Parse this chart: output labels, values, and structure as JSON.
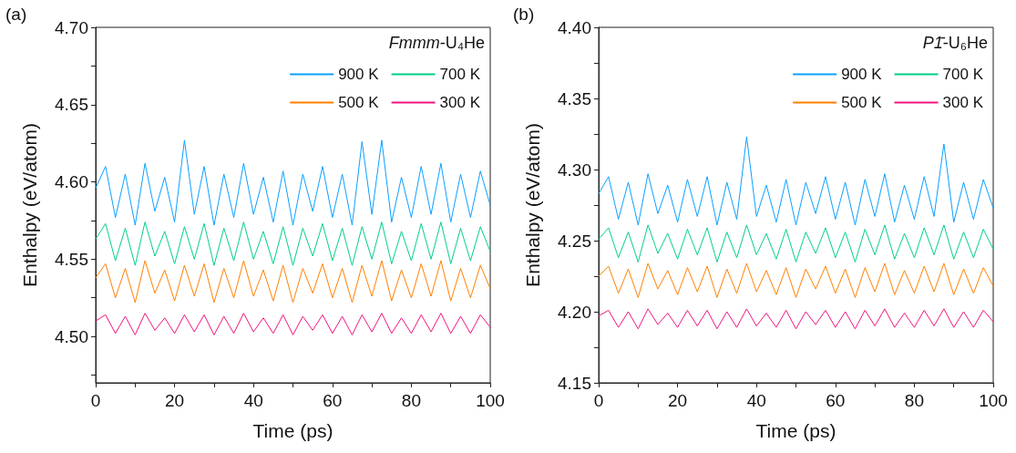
{
  "chart_data": [
    {
      "type": "line",
      "annotations": [
        "(a)"
      ],
      "legend_title": "Fmmm-U₄He",
      "xlabel": "Time (ps)",
      "ylabel": "Enthalpy (eV/atom)",
      "xlim": [
        0,
        100
      ],
      "ylim": [
        4.47,
        4.7
      ],
      "xticks": [
        0,
        {
          "value": 10,
          "label": null
        },
        20,
        {
          "value": 30,
          "label": null
        },
        40,
        {
          "value": 50,
          "label": null
        },
        60,
        {
          "value": 70,
          "label": null
        },
        80,
        {
          "value": 90,
          "label": null
        },
        100
      ],
      "yticks": [
        {
          "value": 4.475,
          "label": null
        },
        {
          "value": 4.5,
          "label": "4.50"
        },
        {
          "value": 4.525,
          "label": null
        },
        {
          "value": 4.55,
          "label": "4.55"
        },
        {
          "value": 4.575,
          "label": null
        },
        {
          "value": 4.6,
          "label": "4.60"
        },
        {
          "value": 4.625,
          "label": null
        },
        {
          "value": 4.65,
          "label": "4.65"
        },
        {
          "value": 4.675,
          "label": null
        },
        {
          "value": 4.7,
          "label": "4.70"
        }
      ],
      "grid": false,
      "legend": "top right",
      "marker": "none",
      "line_style": "solid",
      "x": [
        0,
        2.5,
        5,
        7.5,
        10,
        12.5,
        15,
        17.5,
        20,
        22.5,
        25,
        27.5,
        30,
        32.5,
        35,
        37.5,
        40,
        42.5,
        45,
        47.5,
        50,
        52.5,
        55,
        57.5,
        60,
        62.5,
        65,
        67.5,
        70,
        72.5,
        75,
        77.5,
        80,
        82.5,
        85,
        87.5,
        90,
        92.5,
        95,
        97.5,
        100
      ],
      "series": [
        {
          "name": "900 K",
          "color": "#0aa0ff",
          "values": [
            4.596,
            4.61,
            4.577,
            4.605,
            4.572,
            4.612,
            4.581,
            4.603,
            4.574,
            4.627,
            4.579,
            4.61,
            4.572,
            4.605,
            4.577,
            4.612,
            4.579,
            4.603,
            4.574,
            4.607,
            4.572,
            4.605,
            4.581,
            4.61,
            4.577,
            4.605,
            4.572,
            4.626,
            4.579,
            4.627,
            4.574,
            4.603,
            4.577,
            4.61,
            4.579,
            4.612,
            4.574,
            4.605,
            4.577,
            4.607,
            4.585
          ]
        },
        {
          "name": "700 K",
          "color": "#00d084",
          "values": [
            4.563,
            4.573,
            4.549,
            4.57,
            4.546,
            4.574,
            4.552,
            4.568,
            4.547,
            4.571,
            4.55,
            4.573,
            4.546,
            4.57,
            4.549,
            4.574,
            4.55,
            4.568,
            4.547,
            4.571,
            4.546,
            4.57,
            4.552,
            4.573,
            4.549,
            4.57,
            4.546,
            4.571,
            4.55,
            4.574,
            4.547,
            4.568,
            4.549,
            4.573,
            4.55,
            4.574,
            4.547,
            4.57,
            4.549,
            4.571,
            4.555
          ]
        },
        {
          "name": "500 K",
          "color": "#ff8000",
          "values": [
            4.538,
            4.547,
            4.525,
            4.544,
            4.522,
            4.549,
            4.528,
            4.543,
            4.523,
            4.546,
            4.526,
            4.547,
            4.522,
            4.544,
            4.525,
            4.549,
            4.526,
            4.543,
            4.523,
            4.546,
            4.522,
            4.544,
            4.528,
            4.547,
            4.525,
            4.544,
            4.522,
            4.546,
            4.526,
            4.549,
            4.523,
            4.543,
            4.525,
            4.547,
            4.526,
            4.549,
            4.523,
            4.544,
            4.525,
            4.546,
            4.531
          ]
        },
        {
          "name": "300 K",
          "color": "#f0147f",
          "values": [
            4.51,
            4.514,
            4.502,
            4.513,
            4.501,
            4.515,
            4.504,
            4.512,
            4.502,
            4.514,
            4.503,
            4.514,
            4.501,
            4.513,
            4.502,
            4.515,
            4.503,
            4.512,
            4.502,
            4.514,
            4.501,
            4.513,
            4.504,
            4.514,
            4.502,
            4.513,
            4.501,
            4.514,
            4.503,
            4.515,
            4.502,
            4.512,
            4.502,
            4.514,
            4.503,
            4.515,
            4.502,
            4.513,
            4.502,
            4.514,
            4.506
          ]
        }
      ]
    },
    {
      "type": "line",
      "annotations": [
        "(b)"
      ],
      "legend_title": "P1̄-U₆He",
      "xlabel": "Time (ps)",
      "ylabel": "Enthalpy (eV/atom)",
      "xlim": [
        0,
        100
      ],
      "ylim": [
        4.15,
        4.4
      ],
      "xticks": [
        0,
        {
          "value": 10,
          "label": null
        },
        20,
        {
          "value": 30,
          "label": null
        },
        40,
        {
          "value": 50,
          "label": null
        },
        60,
        {
          "value": 70,
          "label": null
        },
        80,
        {
          "value": 90,
          "label": null
        },
        100
      ],
      "yticks": [
        {
          "value": 4.15,
          "label": "4.15"
        },
        {
          "value": 4.175,
          "label": null
        },
        {
          "value": 4.2,
          "label": "4.20"
        },
        {
          "value": 4.225,
          "label": null
        },
        {
          "value": 4.25,
          "label": "4.25"
        },
        {
          "value": 4.275,
          "label": null
        },
        {
          "value": 4.3,
          "label": "4.30"
        },
        {
          "value": 4.325,
          "label": null
        },
        {
          "value": 4.35,
          "label": "4.35"
        },
        {
          "value": 4.375,
          "label": null
        },
        {
          "value": 4.4,
          "label": "4.40"
        }
      ],
      "grid": false,
      "legend": "top right",
      "marker": "none",
      "line_style": "solid",
      "x": [
        0,
        2.5,
        5,
        7.5,
        10,
        12.5,
        15,
        17.5,
        20,
        22.5,
        25,
        27.5,
        30,
        32.5,
        35,
        37.5,
        40,
        42.5,
        45,
        47.5,
        50,
        52.5,
        55,
        57.5,
        60,
        62.5,
        65,
        67.5,
        70,
        72.5,
        75,
        77.5,
        80,
        82.5,
        85,
        87.5,
        90,
        92.5,
        95,
        97.5,
        100
      ],
      "series": [
        {
          "name": "900 K",
          "color": "#0aa0ff",
          "values": [
            4.283,
            4.295,
            4.265,
            4.291,
            4.261,
            4.297,
            4.269,
            4.289,
            4.263,
            4.293,
            4.267,
            4.295,
            4.261,
            4.291,
            4.265,
            4.323,
            4.267,
            4.289,
            4.263,
            4.293,
            4.261,
            4.291,
            4.269,
            4.295,
            4.265,
            4.291,
            4.261,
            4.293,
            4.267,
            4.297,
            4.263,
            4.289,
            4.265,
            4.295,
            4.267,
            4.318,
            4.263,
            4.291,
            4.265,
            4.293,
            4.273
          ]
        },
        {
          "name": "700 K",
          "color": "#00d084",
          "values": [
            4.251,
            4.259,
            4.238,
            4.256,
            4.235,
            4.261,
            4.241,
            4.255,
            4.237,
            4.258,
            4.24,
            4.259,
            4.235,
            4.256,
            4.238,
            4.261,
            4.24,
            4.255,
            4.237,
            4.258,
            4.235,
            4.256,
            4.241,
            4.259,
            4.238,
            4.256,
            4.235,
            4.258,
            4.24,
            4.261,
            4.237,
            4.255,
            4.238,
            4.259,
            4.24,
            4.261,
            4.237,
            4.256,
            4.238,
            4.258,
            4.244
          ]
        },
        {
          "name": "500 K",
          "color": "#ff8000",
          "values": [
            4.225,
            4.232,
            4.213,
            4.23,
            4.21,
            4.234,
            4.216,
            4.229,
            4.212,
            4.231,
            4.214,
            4.232,
            4.21,
            4.23,
            4.213,
            4.234,
            4.214,
            4.229,
            4.212,
            4.231,
            4.21,
            4.23,
            4.216,
            4.232,
            4.213,
            4.23,
            4.21,
            4.231,
            4.214,
            4.234,
            4.212,
            4.229,
            4.213,
            4.232,
            4.214,
            4.234,
            4.212,
            4.23,
            4.213,
            4.231,
            4.218
          ]
        },
        {
          "name": "300 K",
          "color": "#f0147f",
          "values": [
            4.197,
            4.201,
            4.189,
            4.2,
            4.188,
            4.202,
            4.191,
            4.199,
            4.189,
            4.201,
            4.19,
            4.201,
            4.188,
            4.2,
            4.189,
            4.202,
            4.19,
            4.199,
            4.189,
            4.201,
            4.188,
            4.2,
            4.191,
            4.201,
            4.189,
            4.2,
            4.188,
            4.201,
            4.19,
            4.202,
            4.189,
            4.199,
            4.189,
            4.201,
            4.19,
            4.202,
            4.189,
            4.2,
            4.189,
            4.201,
            4.193
          ]
        }
      ]
    }
  ]
}
